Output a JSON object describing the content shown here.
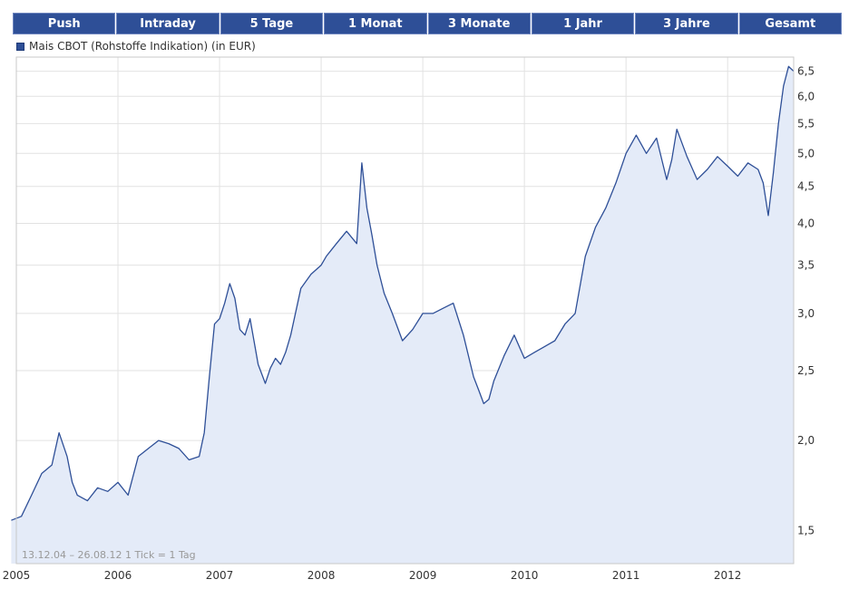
{
  "tabs": [
    "Push",
    "Intraday",
    "5 Tage",
    "1 Monat",
    "3 Monate",
    "1 Jahr",
    "3 Jahre",
    "Gesamt"
  ],
  "legend": {
    "label": "Mais CBOT (Rohstoffe Indikation) (in EUR)",
    "color": "#2e4f97"
  },
  "footer_note": "13.12.04 – 26.08.12   1 Tick = 1 Tag",
  "colors": {
    "tab_bg": "#2e4f97",
    "line": "#2e4f97",
    "area": "#e4ebf8",
    "grid": "#e2e2e2"
  },
  "chart_data": {
    "type": "area",
    "title": "Mais CBOT (Rohstoffe Indikation) (in EUR)",
    "xlabel": "",
    "ylabel": "",
    "y_scale": "log",
    "ylim": [
      1.35,
      6.8
    ],
    "xlim": [
      2005.0,
      2012.65
    ],
    "x_tick_labels": [
      "2005",
      "2006",
      "2007",
      "2008",
      "2009",
      "2010",
      "2011",
      "2012"
    ],
    "y_ticks": [
      1.5,
      2.0,
      2.5,
      3.0,
      3.5,
      4.0,
      4.5,
      5.0,
      5.5,
      6.0,
      6.5
    ],
    "y_tick_labels": [
      "1,5",
      "2,0",
      "2,5",
      "3,0",
      "3,5",
      "4,0",
      "4,5",
      "5,0",
      "5,5",
      "6,0",
      "6,5"
    ],
    "grid": true,
    "legend_position": "top-left",
    "series": [
      {
        "name": "Mais CBOT (Rohstoffe Indikation) (in EUR)",
        "x": [
          2004.95,
          2005.05,
          2005.15,
          2005.25,
          2005.35,
          2005.42,
          2005.5,
          2005.55,
          2005.6,
          2005.7,
          2005.8,
          2005.9,
          2006.0,
          2006.1,
          2006.2,
          2006.3,
          2006.4,
          2006.5,
          2006.6,
          2006.7,
          2006.8,
          2006.85,
          2006.9,
          2006.95,
          2007.0,
          2007.05,
          2007.1,
          2007.15,
          2007.2,
          2007.25,
          2007.3,
          2007.38,
          2007.45,
          2007.5,
          2007.55,
          2007.6,
          2007.65,
          2007.7,
          2007.8,
          2007.9,
          2008.0,
          2008.05,
          2008.15,
          2008.25,
          2008.35,
          2008.4,
          2008.45,
          2008.5,
          2008.55,
          2008.62,
          2008.7,
          2008.8,
          2008.9,
          2009.0,
          2009.1,
          2009.2,
          2009.3,
          2009.4,
          2009.5,
          2009.55,
          2009.6,
          2009.65,
          2009.7,
          2009.8,
          2009.9,
          2010.0,
          2010.1,
          2010.2,
          2010.3,
          2010.4,
          2010.5,
          2010.6,
          2010.7,
          2010.8,
          2010.9,
          2011.0,
          2011.1,
          2011.2,
          2011.3,
          2011.4,
          2011.45,
          2011.5,
          2011.6,
          2011.7,
          2011.8,
          2011.9,
          2012.0,
          2012.1,
          2012.2,
          2012.3,
          2012.35,
          2012.4,
          2012.45,
          2012.5,
          2012.55,
          2012.6,
          2012.65
        ],
        "values": [
          1.55,
          1.57,
          1.68,
          1.8,
          1.85,
          2.05,
          1.9,
          1.75,
          1.68,
          1.65,
          1.72,
          1.7,
          1.75,
          1.68,
          1.9,
          1.95,
          2.0,
          1.98,
          1.95,
          1.88,
          1.9,
          2.05,
          2.45,
          2.9,
          2.95,
          3.1,
          3.3,
          3.15,
          2.85,
          2.8,
          2.95,
          2.55,
          2.4,
          2.52,
          2.6,
          2.55,
          2.65,
          2.8,
          3.25,
          3.4,
          3.5,
          3.6,
          3.75,
          3.9,
          3.75,
          4.85,
          4.2,
          3.85,
          3.5,
          3.2,
          3.0,
          2.75,
          2.85,
          3.0,
          3.0,
          3.05,
          3.1,
          2.8,
          2.45,
          2.35,
          2.25,
          2.28,
          2.42,
          2.62,
          2.8,
          2.6,
          2.65,
          2.7,
          2.75,
          2.9,
          3.0,
          3.6,
          3.95,
          4.2,
          4.55,
          5.0,
          5.3,
          5.0,
          5.25,
          4.6,
          4.9,
          5.4,
          4.95,
          4.6,
          4.75,
          4.95,
          4.8,
          4.65,
          4.85,
          4.75,
          4.55,
          4.1,
          4.7,
          5.5,
          6.2,
          6.6,
          6.5
        ]
      }
    ]
  }
}
